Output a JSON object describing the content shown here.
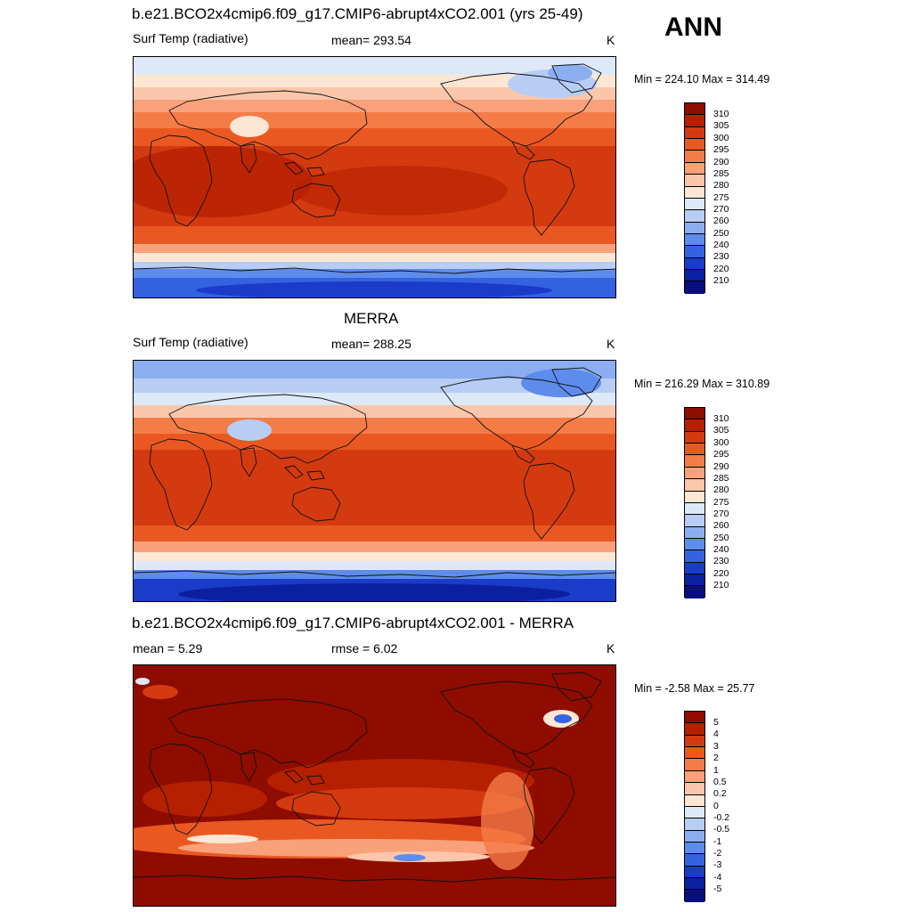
{
  "header": {
    "season": "ANN"
  },
  "panels": [
    {
      "title": "b.e21.BCO2x4cmip6.f09_g17.CMIP6-abrupt4xCO2.001 (yrs 25-49)",
      "left_label": "Surf Temp (radiative)",
      "center_label": "mean= 293.54",
      "right_label": "K",
      "minmax": "Min = 224.10 Max = 314.49",
      "colorbar_labels": [
        "310",
        "305",
        "300",
        "295",
        "290",
        "285",
        "280",
        "275",
        "270",
        "260",
        "250",
        "240",
        "230",
        "220",
        "210"
      ],
      "colors": [
        "#8e0c00",
        "#b52000",
        "#d43a10",
        "#ea5822",
        "#f47c47",
        "#f8a17a",
        "#fbc6aa",
        "#fde6d4",
        "#dde9f8",
        "#b7cdf4",
        "#8aaef0",
        "#5e8cec",
        "#3562e0",
        "#1a3cc8",
        "#0c1fa0",
        "#070f80"
      ]
    },
    {
      "title": "MERRA",
      "left_label": "Surf Temp (radiative)",
      "center_label": "mean= 288.25",
      "right_label": "K",
      "minmax": "Min = 216.29 Max = 310.89",
      "colorbar_labels": [
        "310",
        "305",
        "300",
        "295",
        "290",
        "285",
        "280",
        "275",
        "270",
        "260",
        "250",
        "240",
        "230",
        "220",
        "210"
      ],
      "colors": [
        "#8e0c00",
        "#b52000",
        "#d43a10",
        "#ea5822",
        "#f47c47",
        "#f8a17a",
        "#fbc6aa",
        "#fde6d4",
        "#dde9f8",
        "#b7cdf4",
        "#8aaef0",
        "#5e8cec",
        "#3562e0",
        "#1a3cc8",
        "#0c1fa0",
        "#070f80"
      ]
    },
    {
      "title": "b.e21.BCO2x4cmip6.f09_g17.CMIP6-abrupt4xCO2.001 - MERRA",
      "left_label": "mean =   5.29",
      "center_label": "rmse =   6.02",
      "right_label": "K",
      "minmax": "Min =  -2.58 Max =  25.77",
      "colorbar_labels": [
        "5",
        "4",
        "3",
        "2",
        "1",
        "0.5",
        "0.2",
        "0",
        "-0.2",
        "-0.5",
        "-1",
        "-2",
        "-3",
        "-4",
        "-5"
      ],
      "colors": [
        "#8e0c00",
        "#b52000",
        "#d43a10",
        "#ea5822",
        "#f47c47",
        "#f8a17a",
        "#fbc6aa",
        "#fde6d4",
        "#dde9f8",
        "#b7cdf4",
        "#8aaef0",
        "#5e8cec",
        "#3562e0",
        "#1a3cc8",
        "#0c1fa0",
        "#070f80"
      ]
    }
  ]
}
